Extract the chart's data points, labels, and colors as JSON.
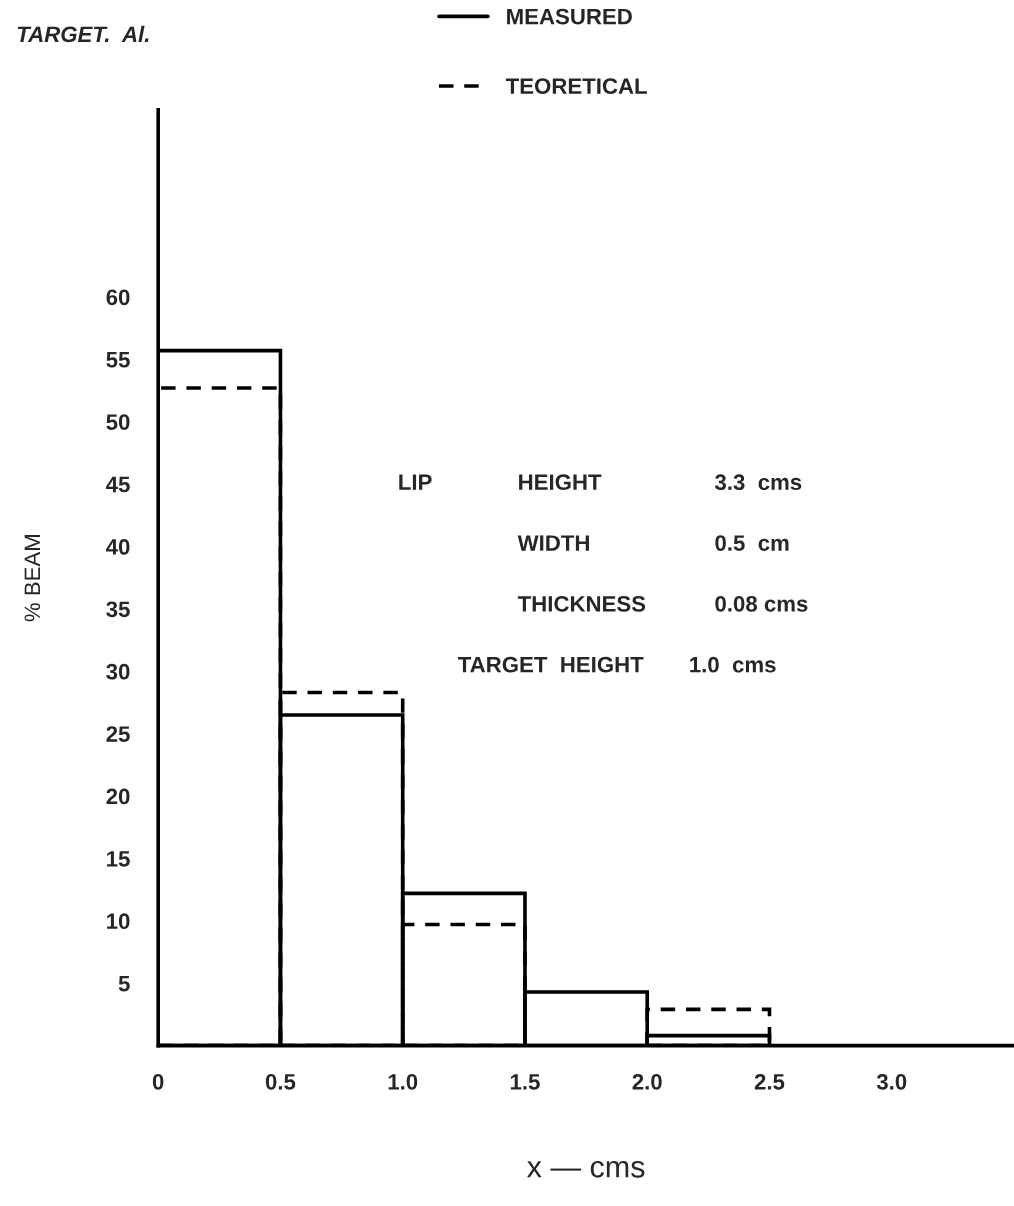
{
  "chart_data": {
    "type": "histogram",
    "title": "TARGET.  Al.",
    "xlabel": "x — cms",
    "ylabel": "% BEAM",
    "bins": [
      0,
      0.5,
      1.0,
      1.5,
      2.0,
      2.5
    ],
    "series": [
      {
        "name": "MEASURED",
        "color": "#000000",
        "line_style": "solid",
        "values": [
          55.7,
          26.5,
          12.2,
          4.3,
          0.8
        ]
      },
      {
        "name": "TEORETICAL",
        "color": "#000000",
        "line_style": "dashed",
        "values": [
          52.7,
          28.3,
          9.7,
          null,
          2.9
        ]
      }
    ],
    "xlim": [
      0,
      3.5
    ],
    "xticks": [
      0,
      0.5,
      {
        "value": 1,
        "label": "1.0"
      },
      1.5,
      {
        "value": 2,
        "label": "2.0"
      },
      2.5,
      {
        "value": 3,
        "label": "3.0"
      }
    ],
    "ylim": [
      0,
      75
    ],
    "yticks": [
      5,
      10,
      15,
      20,
      25,
      30,
      35,
      40,
      45,
      50,
      55,
      60
    ],
    "legend": "top",
    "grid": false,
    "annotations": [
      "LIP",
      "HEIGHT",
      "3.3  cms",
      "WIDTH",
      "0.5  cm",
      "THICKNESS",
      "0.08 cms",
      "TARGET  HEIGHT",
      "1.0  cms"
    ]
  }
}
